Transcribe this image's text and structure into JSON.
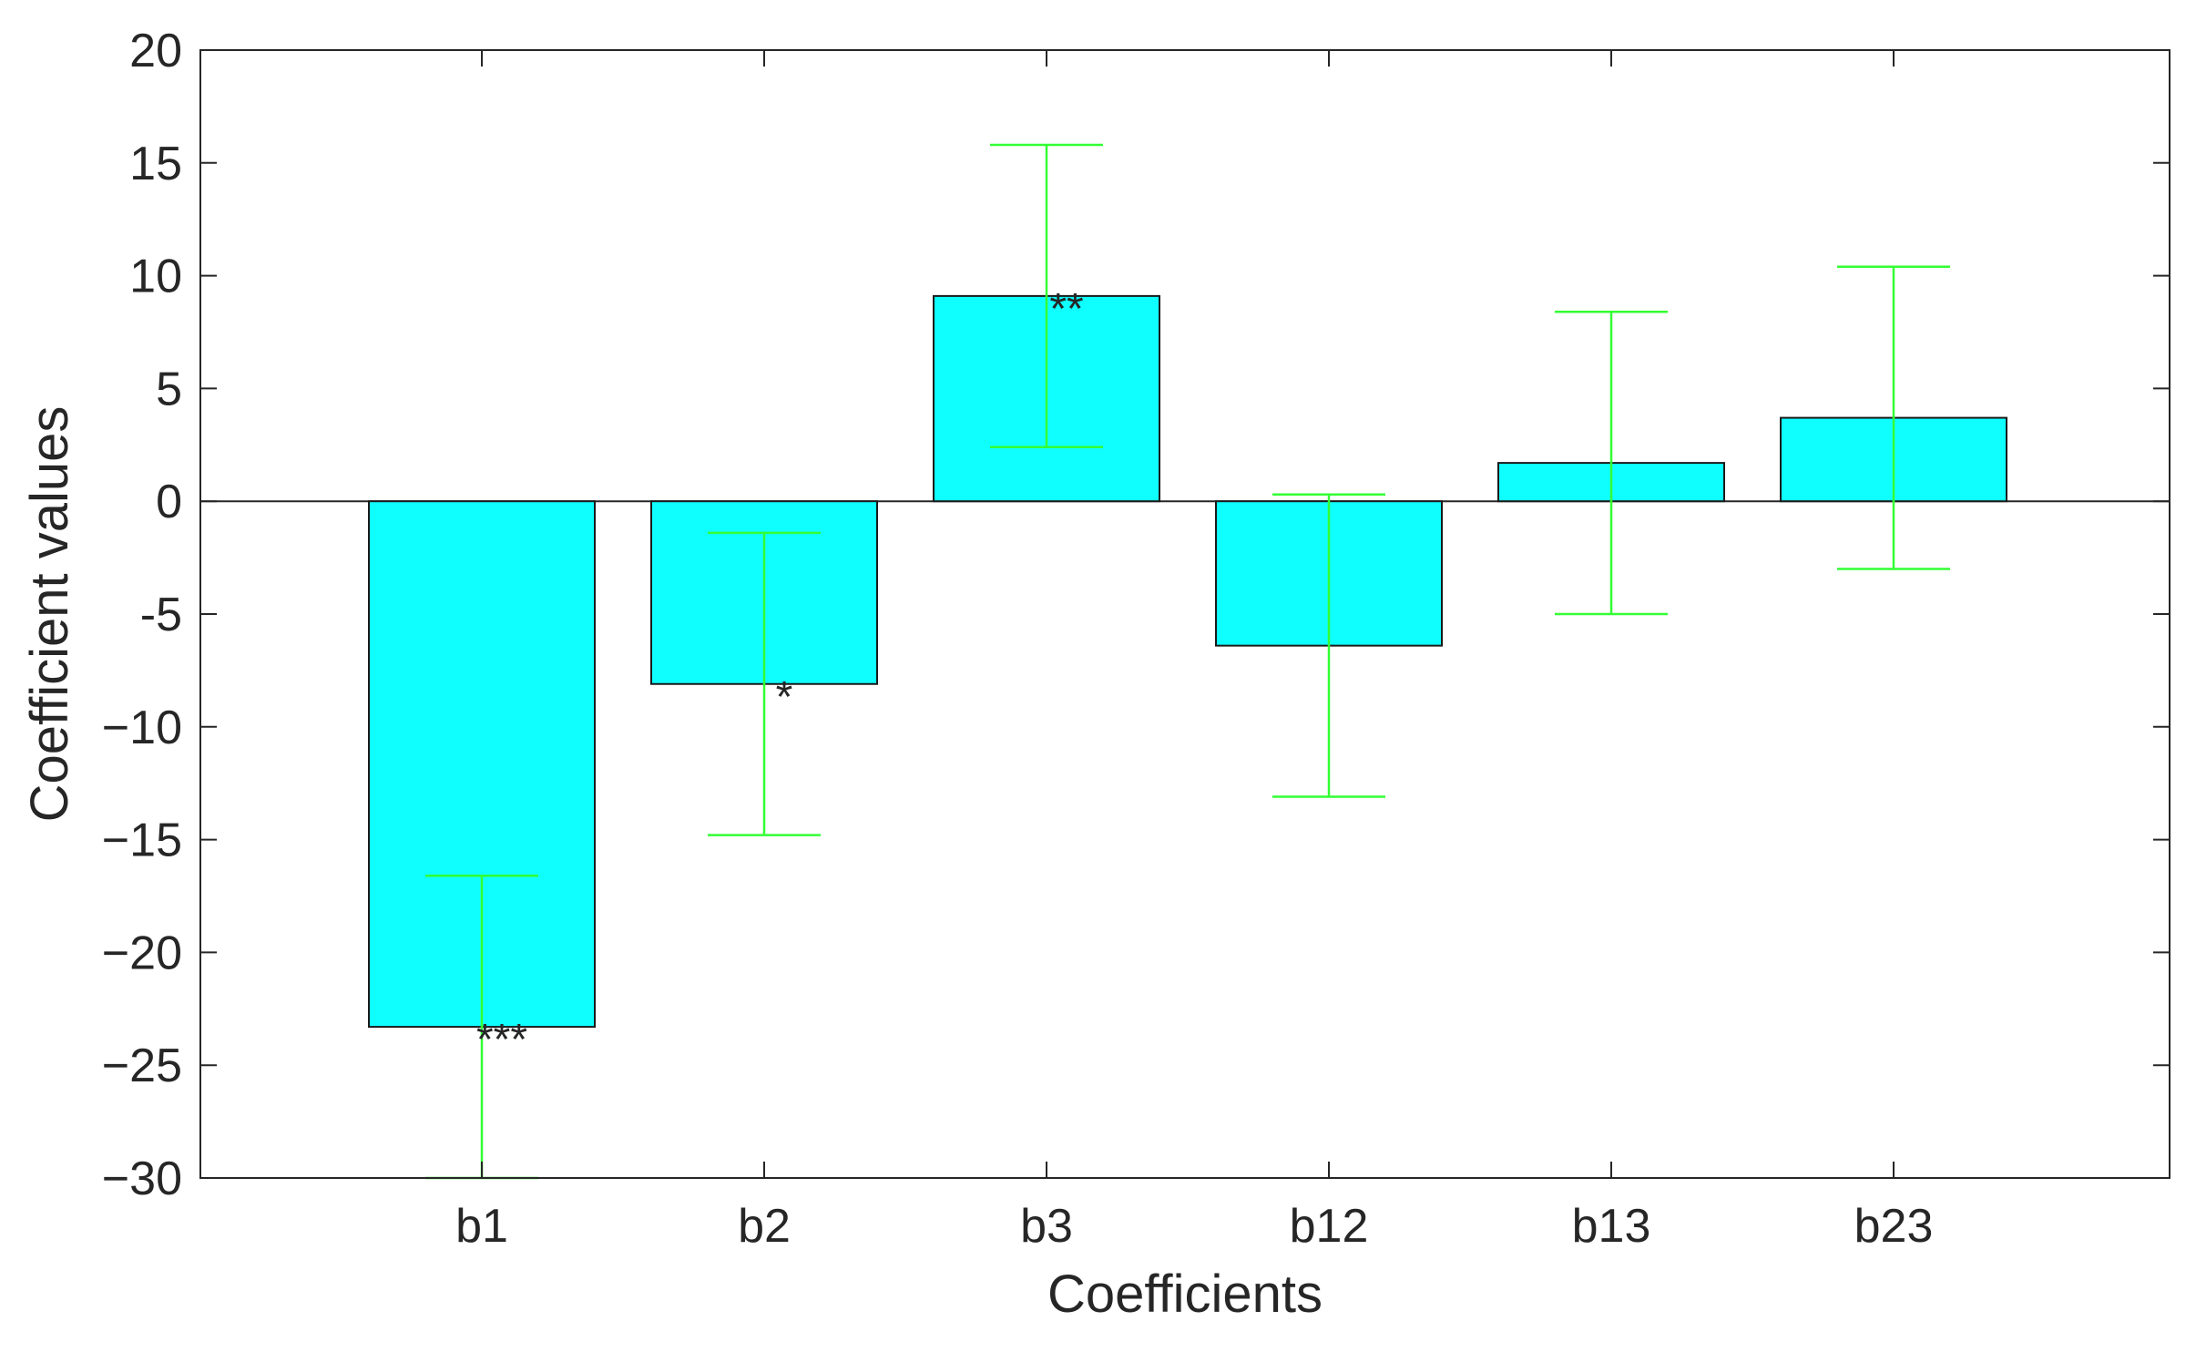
{
  "chart_data": {
    "type": "bar",
    "title": "",
    "xlabel": "Coefficients",
    "ylabel": "Coefficient values",
    "categories": [
      "b1",
      "b2",
      "b3",
      "b12",
      "b13",
      "b23"
    ],
    "values": [
      -23.3,
      -8.1,
      9.1,
      -6.4,
      1.7,
      3.7
    ],
    "error_bars": {
      "lower": [
        -30.0,
        -14.8,
        2.4,
        -13.1,
        -5.0,
        -3.0
      ],
      "upper": [
        -16.6,
        -1.4,
        15.8,
        0.3,
        8.4,
        10.4
      ]
    },
    "significance": [
      "***",
      "*",
      "**",
      "",
      "",
      ""
    ],
    "ylim": [
      -30,
      20
    ],
    "yticks": [
      20,
      15,
      10,
      5,
      0,
      -5,
      -10,
      -15,
      -20,
      -25,
      -30
    ],
    "ytick_labels": [
      "20",
      "15",
      "10",
      "5",
      "0",
      "-5",
      "−10",
      "−15",
      "−20",
      "−25",
      "−30"
    ],
    "grid": false,
    "colors": {
      "bar_fill": "#0fffff",
      "bar_edge": "#1a1a1a",
      "error_bar": "#33ff33",
      "axis": "#262626",
      "zero_line": "#262626"
    }
  }
}
